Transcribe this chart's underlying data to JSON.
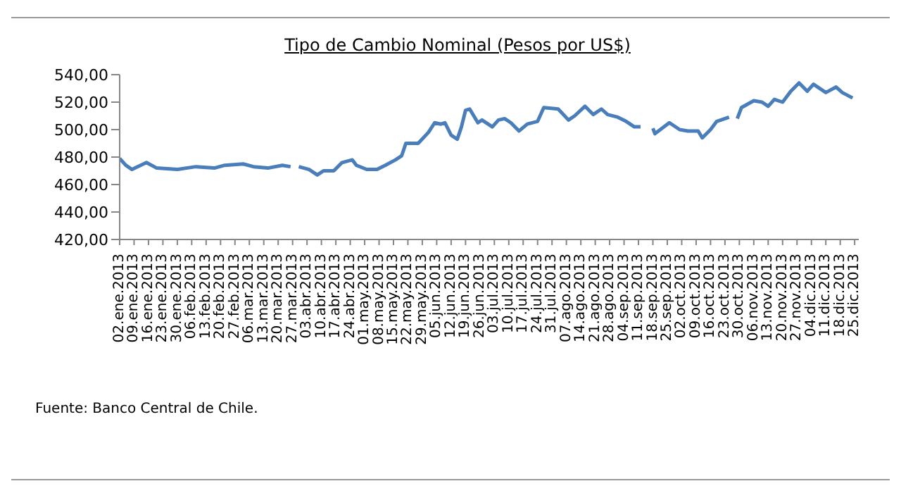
{
  "chart_data": {
    "type": "line",
    "title": "Tipo de Cambio Nominal (Pesos por US$)",
    "x": [
      "2013-01-02",
      "2013-01-05",
      "2013-01-08",
      "2013-01-15",
      "2013-01-20",
      "2013-01-30",
      "2013-02-08",
      "2013-02-17",
      "2013-02-22",
      "2013-03-03",
      "2013-03-08",
      "2013-03-15",
      "2013-03-22",
      "2013-03-26",
      "2013-03-28",
      "2013-03-30",
      "2013-04-04",
      "2013-04-08",
      "2013-04-11",
      "2013-04-16",
      "2013-04-20",
      "2013-04-25",
      "2013-04-27",
      "2013-05-02",
      "2013-05-07",
      "2013-05-11",
      "2013-05-16",
      "2013-05-19",
      "2013-05-21",
      "2013-05-27",
      "2013-06-01",
      "2013-06-04",
      "2013-06-07",
      "2013-06-09",
      "2013-06-12",
      "2013-06-15",
      "2013-06-17",
      "2013-06-19",
      "2013-06-21",
      "2013-06-25",
      "2013-06-27",
      "2013-07-02",
      "2013-07-05",
      "2013-07-08",
      "2013-07-11",
      "2013-07-15",
      "2013-07-19",
      "2013-07-24",
      "2013-07-27",
      "2013-08-03",
      "2013-08-08",
      "2013-08-11",
      "2013-08-16",
      "2013-08-20",
      "2013-08-24",
      "2013-08-27",
      "2013-09-01",
      "2013-09-05",
      "2013-09-09",
      "2013-09-12",
      "2013-09-16",
      "2013-09-18",
      "2013-09-19",
      "2013-09-26",
      "2013-10-01",
      "2013-10-05",
      "2013-10-10",
      "2013-10-12",
      "2013-10-16",
      "2013-10-19",
      "2013-10-25",
      "2013-10-27",
      "2013-10-29",
      "2013-10-31",
      "2013-11-06",
      "2013-11-10",
      "2013-11-13",
      "2013-11-16",
      "2013-11-20",
      "2013-11-24",
      "2013-11-28",
      "2013-12-02",
      "2013-12-05",
      "2013-12-11",
      "2013-12-16",
      "2013-12-19",
      "2013-12-24"
    ],
    "series": [
      {
        "color": "#4a7ebb",
        "values": [
          479,
          474,
          471,
          476,
          472,
          471,
          473,
          472,
          474,
          475,
          473,
          472,
          474,
          473,
          null,
          473,
          471,
          467,
          470,
          470,
          476,
          478,
          474,
          471,
          471,
          474,
          478,
          481,
          490,
          490,
          498,
          505,
          504,
          505,
          496,
          493,
          502,
          514,
          515,
          505,
          507,
          502,
          507,
          508,
          505,
          499,
          504,
          506,
          516,
          515,
          507,
          510,
          517,
          511,
          515,
          511,
          509,
          506,
          502,
          502,
          null,
          501,
          497,
          505,
          500,
          499,
          499,
          494,
          500,
          506,
          509,
          null,
          508,
          516,
          521,
          520,
          517,
          522,
          520,
          528,
          534,
          528,
          533,
          527,
          531,
          527,
          523
        ]
      }
    ],
    "xlim": [
      "2013-01-02",
      "2013-12-27"
    ],
    "xticks": [
      {
        "value": "2013-01-02",
        "label": "02.ene.2013"
      },
      {
        "value": "2013-01-09",
        "label": "09.ene.2013"
      },
      {
        "value": "2013-01-16",
        "label": "16.ene.2013"
      },
      {
        "value": "2013-01-23",
        "label": "23.ene.2013"
      },
      {
        "value": "2013-01-30",
        "label": "30.ene.2013"
      },
      {
        "value": "2013-02-06",
        "label": "06.feb.2013"
      },
      {
        "value": "2013-02-13",
        "label": "13.feb.2013"
      },
      {
        "value": "2013-02-20",
        "label": "20.feb.2013"
      },
      {
        "value": "2013-02-27",
        "label": "27.feb.2013"
      },
      {
        "value": "2013-03-06",
        "label": "06.mar.2013"
      },
      {
        "value": "2013-03-13",
        "label": "13.mar.2013"
      },
      {
        "value": "2013-03-20",
        "label": "20.mar.2013"
      },
      {
        "value": "2013-03-27",
        "label": "27.mar.2013"
      },
      {
        "value": "2013-04-03",
        "label": "03.abr.2013"
      },
      {
        "value": "2013-04-10",
        "label": "10.abr.2013"
      },
      {
        "value": "2013-04-17",
        "label": "17.abr.2013"
      },
      {
        "value": "2013-04-24",
        "label": "24.abr.2013"
      },
      {
        "value": "2013-05-01",
        "label": "01.may.2013"
      },
      {
        "value": "2013-05-08",
        "label": "08.may.2013"
      },
      {
        "value": "2013-05-15",
        "label": "15.may.2013"
      },
      {
        "value": "2013-05-22",
        "label": "22.may.2013"
      },
      {
        "value": "2013-05-29",
        "label": "29.may.2013"
      },
      {
        "value": "2013-06-05",
        "label": "05.jun.2013"
      },
      {
        "value": "2013-06-12",
        "label": "12.jun.2013"
      },
      {
        "value": "2013-06-19",
        "label": "19.jun.2013"
      },
      {
        "value": "2013-06-26",
        "label": "26.jun.2013"
      },
      {
        "value": "2013-07-03",
        "label": "03.jul.2013"
      },
      {
        "value": "2013-07-10",
        "label": "10.jul.2013"
      },
      {
        "value": "2013-07-17",
        "label": "17.jul.2013"
      },
      {
        "value": "2013-07-24",
        "label": "24.jul.2013"
      },
      {
        "value": "2013-07-31",
        "label": "31.jul.2013"
      },
      {
        "value": "2013-08-07",
        "label": "07.ago.2013"
      },
      {
        "value": "2013-08-14",
        "label": "14.ago.2013"
      },
      {
        "value": "2013-08-21",
        "label": "21.ago.2013"
      },
      {
        "value": "2013-08-28",
        "label": "28.ago.2013"
      },
      {
        "value": "2013-09-04",
        "label": "04.sep.2013"
      },
      {
        "value": "2013-09-11",
        "label": "11.sep.2013"
      },
      {
        "value": "2013-09-18",
        "label": "18.sep.2013"
      },
      {
        "value": "2013-09-25",
        "label": "25.sep.2013"
      },
      {
        "value": "2013-10-02",
        "label": "02.oct.2013"
      },
      {
        "value": "2013-10-09",
        "label": "09.oct.2013"
      },
      {
        "value": "2013-10-16",
        "label": "16.oct.2013"
      },
      {
        "value": "2013-10-23",
        "label": "23.oct.2013"
      },
      {
        "value": "2013-10-30",
        "label": "30.oct.2013"
      },
      {
        "value": "2013-11-06",
        "label": "06.nov.2013"
      },
      {
        "value": "2013-11-13",
        "label": "13.nov.2013"
      },
      {
        "value": "2013-11-20",
        "label": "20.nov.2013"
      },
      {
        "value": "2013-11-27",
        "label": "27.nov.2013"
      },
      {
        "value": "2013-12-04",
        "label": "04.dic.2013"
      },
      {
        "value": "2013-12-11",
        "label": "11.dic.2013"
      },
      {
        "value": "2013-12-18",
        "label": "18.dic.2013"
      },
      {
        "value": "2013-12-25",
        "label": "25.dic.2013"
      }
    ],
    "ylim": [
      420,
      540
    ],
    "yticks": [
      {
        "value": 420,
        "label": "420,00"
      },
      {
        "value": 440,
        "label": "440,00"
      },
      {
        "value": 460,
        "label": "460,00"
      },
      {
        "value": 480,
        "label": "480,00"
      },
      {
        "value": 500,
        "label": "500,00"
      },
      {
        "value": 520,
        "label": "520,00"
      },
      {
        "value": 540,
        "label": "540,00"
      }
    ],
    "marker": "none",
    "line_style": "solid",
    "annotations": [
      "Fuente: Banco Central de Chile."
    ]
  }
}
